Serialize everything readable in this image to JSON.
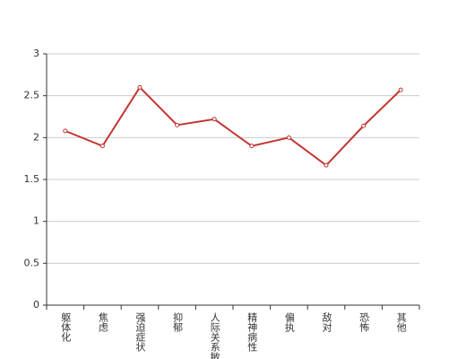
{
  "chart_data": {
    "type": "line",
    "categories": [
      "躯体化",
      "焦虑",
      "强迫症状",
      "抑郁",
      "人际关系敏感",
      "精神病性",
      "偏执",
      "敌对",
      "恐怖",
      "其他"
    ],
    "values": [
      2.08,
      1.9,
      2.6,
      2.15,
      2.22,
      1.9,
      2.0,
      1.67,
      2.14,
      2.57
    ],
    "color": "#c23531",
    "ylim": [
      0,
      3
    ],
    "yticks": [
      0,
      0.5,
      1,
      1.5,
      2,
      2.5,
      3
    ],
    "grid": true
  }
}
